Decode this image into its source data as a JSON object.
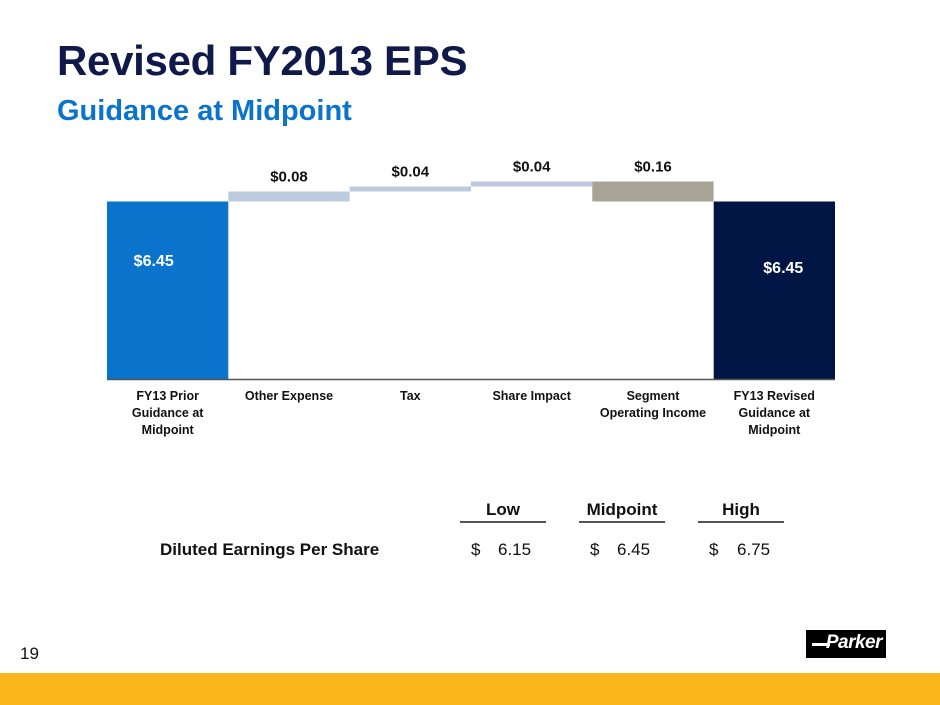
{
  "header": {
    "title": "Revised FY2013 EPS",
    "subtitle": "Guidance at Midpoint"
  },
  "chart_data": {
    "type": "waterfall",
    "title": "Revised FY2013 EPS",
    "subtitle": "Guidance at Midpoint",
    "xlabel": "",
    "ylabel": "",
    "grid": false,
    "categories": [
      "FY13 Prior Guidance at Midpoint",
      "Other Expense",
      "Tax",
      "Share Impact",
      "Segment Operating Income",
      "FY13 Revised Guidance at Midpoint"
    ],
    "category_lines": [
      [
        "FY13 Prior",
        "Guidance at",
        "Midpoint"
      ],
      [
        "Other Expense"
      ],
      [
        "Tax"
      ],
      [
        "Share Impact"
      ],
      [
        "Segment",
        "Operating Income"
      ],
      [
        "FY13 Revised",
        "Guidance at",
        "Midpoint"
      ]
    ],
    "values": [
      6.45,
      0.08,
      0.04,
      0.04,
      -0.16,
      6.45
    ],
    "kinds": [
      "total",
      "increase",
      "increase",
      "increase",
      "decrease",
      "total"
    ],
    "data_labels": [
      "$6.45",
      "$0.08",
      "$0.04",
      "$0.04",
      "$0.16",
      "$6.45"
    ],
    "colors": {
      "prior_total": "#0a74cc",
      "increase": "#bccbdf",
      "decrease": "#a8a397",
      "revised_total": "#001544",
      "axis": "#555555"
    }
  },
  "table": {
    "headers": [
      "Low",
      "Midpoint",
      "High"
    ],
    "rows": [
      {
        "label": "Diluted Earnings Per Share",
        "currency": [
          "$",
          "$",
          "$"
        ],
        "values": [
          "6.15",
          "6.45",
          "6.75"
        ]
      }
    ]
  },
  "footer": {
    "page_number": "19",
    "logo_text": "Parker",
    "band_color": "#fbb61c"
  }
}
